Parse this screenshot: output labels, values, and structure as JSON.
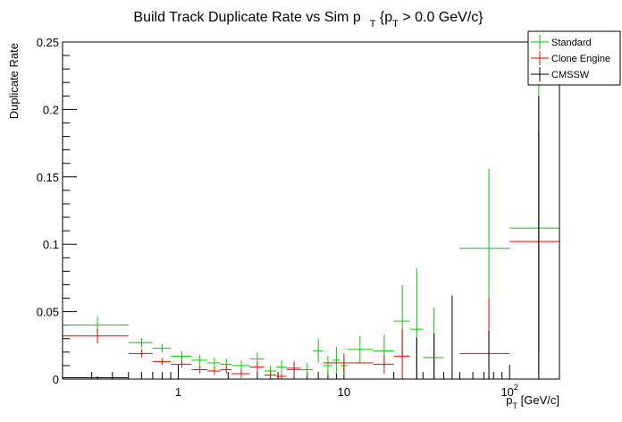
{
  "chart_data": {
    "type": "scatter",
    "title_parts": [
      "Build Track Duplicate Rate vs Sim p",
      "T",
      " {p",
      "T",
      " > 0.0 GeV/c}"
    ],
    "xlabel_parts": [
      "p",
      "T",
      " [GeV/c]"
    ],
    "ylabel": "Duplicate Rate",
    "x_scale": "log",
    "xlim": [
      0.2,
      200
    ],
    "ylim": [
      0,
      0.25
    ],
    "grid": false,
    "legend_position": "top-right",
    "y_ticks": [
      "0",
      "0.05",
      "0.1",
      "0.15",
      "0.2",
      "0.25"
    ],
    "x_ticks": [
      {
        "value": 1,
        "base": "1",
        "exp": ""
      },
      {
        "value": 10,
        "base": "10",
        "exp": ""
      },
      {
        "value": 100,
        "base": "10",
        "exp": "2"
      }
    ],
    "series": [
      {
        "name": "Standard",
        "color": "#00cc00",
        "points": [
          {
            "x": 0.325,
            "xlo": 0.2,
            "xhi": 0.5,
            "y": 0.04,
            "err": 0.0065
          },
          {
            "x": 0.6,
            "xlo": 0.5,
            "xhi": 0.7,
            "y": 0.027,
            "err": 0.0035
          },
          {
            "x": 0.8,
            "xlo": 0.7,
            "xhi": 0.9,
            "y": 0.023,
            "err": 0.003
          },
          {
            "x": 1.05,
            "xlo": 0.9,
            "xhi": 1.2,
            "y": 0.017,
            "err": 0.0035
          },
          {
            "x": 1.35,
            "xlo": 1.2,
            "xhi": 1.5,
            "y": 0.014,
            "err": 0.004
          },
          {
            "x": 1.65,
            "xlo": 1.5,
            "xhi": 1.8,
            "y": 0.012,
            "err": 0.004
          },
          {
            "x": 1.95,
            "xlo": 1.8,
            "xhi": 2.1,
            "y": 0.011,
            "err": 0.004
          },
          {
            "x": 2.4,
            "xlo": 2.1,
            "xhi": 2.7,
            "y": 0.01,
            "err": 0.004
          },
          {
            "x": 3.0,
            "xlo": 2.7,
            "xhi": 3.3,
            "y": 0.015,
            "err": 0.005
          },
          {
            "x": 3.6,
            "xlo": 3.3,
            "xhi": 3.9,
            "y": 0.006,
            "err": 0.004
          },
          {
            "x": 4.2,
            "xlo": 3.9,
            "xhi": 4.5,
            "y": 0.009,
            "err": 0.005
          },
          {
            "x": 5.0,
            "xlo": 4.5,
            "xhi": 5.5,
            "y": 0.007,
            "err": 0.005
          },
          {
            "x": 6.0,
            "xlo": 5.5,
            "xhi": 6.5,
            "y": 0.007,
            "err": 0.005
          },
          {
            "x": 7.0,
            "xlo": 6.5,
            "xhi": 7.5,
            "y": 0.021,
            "err": 0.009
          },
          {
            "x": 8.0,
            "xlo": 7.5,
            "xhi": 8.5,
            "y": 0.01,
            "err": 0.007
          },
          {
            "x": 9.0,
            "xlo": 8.5,
            "xhi": 9.5,
            "y": 0.014,
            "err": 0.01
          },
          {
            "x": 10.0,
            "xlo": 9.5,
            "xhi": 10.5,
            "y": 0.01,
            "err": 0.007
          },
          {
            "x": 12.5,
            "xlo": 10.5,
            "xhi": 15,
            "y": 0.022,
            "err": 0.01
          },
          {
            "x": 17.5,
            "xlo": 15,
            "xhi": 20,
            "y": 0.021,
            "err": 0.012
          },
          {
            "x": 22.5,
            "xlo": 20,
            "xhi": 25,
            "y": 0.043,
            "err": 0.027
          },
          {
            "x": 27.5,
            "xlo": 25,
            "xhi": 30,
            "y": 0.037,
            "err": 0.045
          },
          {
            "x": 35,
            "xlo": 30,
            "xhi": 40,
            "y": 0.016,
            "err": 0.037
          },
          {
            "x": 75,
            "xlo": 50,
            "xhi": 100,
            "y": 0.097,
            "err": 0.059
          },
          {
            "x": 150,
            "xlo": 100,
            "xhi": 200,
            "y": 0.112,
            "err": 0.108
          }
        ]
      },
      {
        "name": "Clone Engine",
        "color": "#ff0000",
        "points": [
          {
            "x": 0.325,
            "xlo": 0.2,
            "xhi": 0.5,
            "y": 0.032,
            "err": 0.0055
          },
          {
            "x": 0.6,
            "xlo": 0.5,
            "xhi": 0.7,
            "y": 0.019,
            "err": 0.003
          },
          {
            "x": 0.8,
            "xlo": 0.7,
            "xhi": 0.9,
            "y": 0.013,
            "err": 0.0025
          },
          {
            "x": 1.05,
            "xlo": 0.9,
            "xhi": 1.2,
            "y": 0.011,
            "err": 0.0025
          },
          {
            "x": 1.35,
            "xlo": 1.2,
            "xhi": 1.5,
            "y": 0.007,
            "err": 0.003
          },
          {
            "x": 1.65,
            "xlo": 1.5,
            "xhi": 1.8,
            "y": 0.006,
            "err": 0.003
          },
          {
            "x": 1.95,
            "xlo": 1.8,
            "xhi": 2.1,
            "y": 0.007,
            "err": 0.003
          },
          {
            "x": 2.4,
            "xlo": 2.1,
            "xhi": 2.7,
            "y": 0.004,
            "err": 0.003
          },
          {
            "x": 3.0,
            "xlo": 2.7,
            "xhi": 3.3,
            "y": 0.009,
            "err": 0.004
          },
          {
            "x": 3.6,
            "xlo": 3.3,
            "xhi": 3.9,
            "y": 0.003,
            "err": 0.003
          },
          {
            "x": 4.2,
            "xlo": 3.9,
            "xhi": 4.5,
            "y": 0.002,
            "err": 0.002
          },
          {
            "x": 5.0,
            "xlo": 4.5,
            "xhi": 5.5,
            "y": 0.008,
            "err": 0.005
          },
          {
            "x": 10.0,
            "xlo": 7.5,
            "xhi": 15,
            "y": 0.012,
            "err": 0.007
          },
          {
            "x": 17.5,
            "xlo": 15,
            "xhi": 20,
            "y": 0.011,
            "err": 0.007
          },
          {
            "x": 22.5,
            "xlo": 20,
            "xhi": 25,
            "y": 0.017,
            "err": 0.02
          },
          {
            "x": 75,
            "xlo": 50,
            "xhi": 100,
            "y": 0.019,
            "err": 0.041
          },
          {
            "x": 150,
            "xlo": 100,
            "xhi": 200,
            "y": 0.102,
            "err": 0.083
          }
        ]
      },
      {
        "name": "CMSSW",
        "color": "#000000",
        "points": [
          {
            "x": 0.325,
            "xlo": 0.2,
            "xhi": 0.5,
            "y": 0.001,
            "err": 0.001
          },
          {
            "x": 27.5,
            "xlo": 27.5,
            "xhi": 27.5,
            "y": 0.0,
            "err": 0.031
          },
          {
            "x": 35,
            "xlo": 35,
            "xhi": 35,
            "y": 0.0,
            "err": 0.034
          },
          {
            "x": 45,
            "xlo": 45,
            "xhi": 45,
            "y": 0.0,
            "err": 0.062
          },
          {
            "x": 75,
            "xlo": 75,
            "xhi": 75,
            "y": 0.0,
            "err": 0.036
          },
          {
            "x": 150,
            "xlo": 150,
            "xhi": 150,
            "y": 0.0,
            "err": 0.21
          }
        ]
      }
    ]
  }
}
